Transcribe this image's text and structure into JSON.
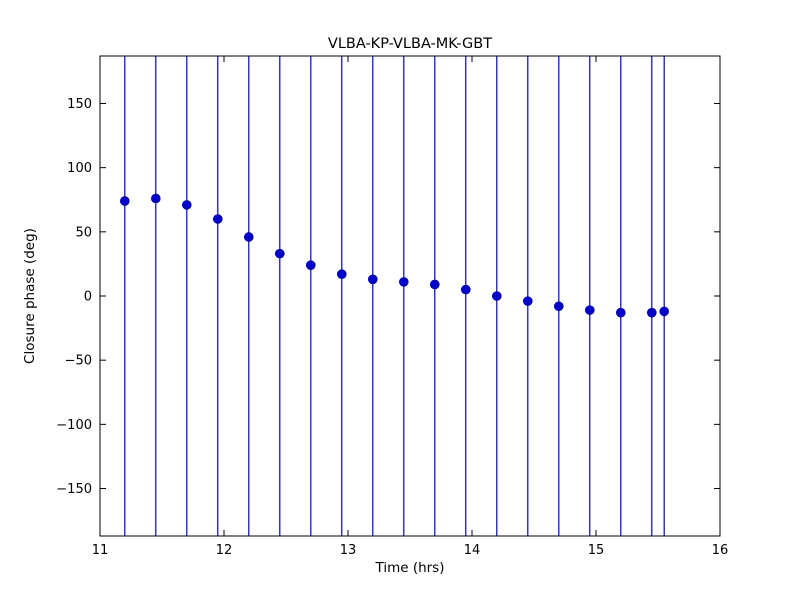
{
  "figure": {
    "title": "VLBA-KP-VLBA-MK-GBT",
    "xlabel": "Time (hrs)",
    "ylabel": "Closure phase (deg)"
  },
  "chart_data": {
    "type": "scatter",
    "title": "VLBA-KP-VLBA-MK-GBT",
    "xlabel": "Time (hrs)",
    "ylabel": "Closure phase (deg)",
    "xlim": [
      11,
      16
    ],
    "ylim": [
      -187,
      187
    ],
    "xticks": [
      11,
      12,
      13,
      14,
      15,
      16
    ],
    "yticks": [
      -150,
      -100,
      -50,
      0,
      50,
      100,
      150
    ],
    "grid": false,
    "legend": "none",
    "marker": "circle",
    "marker_color": "#0000cd",
    "errorbar_color": "#0000cd",
    "errorbar_style": "vertical lines spanning full plot height (error bars clipped at axes limits)",
    "series": [
      {
        "name": "closure phase",
        "x": [
          11.2,
          11.45,
          11.7,
          11.95,
          12.2,
          12.45,
          12.7,
          12.95,
          13.2,
          13.45,
          13.7,
          13.95,
          14.2,
          14.45,
          14.7,
          14.95,
          15.2,
          15.45,
          15.55
        ],
        "y": [
          74,
          76,
          71,
          60,
          46,
          33,
          24,
          17,
          13,
          11,
          9,
          5,
          0,
          -4,
          -8,
          -11,
          -13,
          -13,
          -12
        ]
      }
    ]
  }
}
